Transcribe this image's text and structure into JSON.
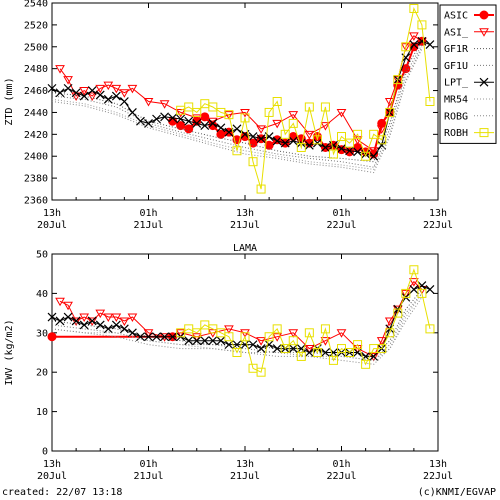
{
  "footer": {
    "created": "created: 22/07 13:18",
    "credit": "(c)KNMI/EGVAP"
  },
  "colors": {
    "ASIC": "#ff0000",
    "ASI_": "#ff0000",
    "GF1R": "#555555",
    "GF1U": "#777777",
    "LPT_": "#000000",
    "MR54": "#999999",
    "ROBG": "#888888",
    "ROBH": "#e8e000"
  },
  "chart_data": [
    {
      "type": "line",
      "title": "",
      "xlabel": "",
      "ylabel": "ZTD (mm)",
      "ylim": [
        2360,
        2540
      ],
      "yticks": [
        2360,
        2380,
        2400,
        2420,
        2440,
        2460,
        2480,
        2500,
        2520,
        2540
      ],
      "xlim": [
        0,
        48
      ],
      "x_unit": "hours since 20Jul 13h",
      "xticks": [
        {
          "x": 0,
          "top": "13h",
          "bottom": "20Jul"
        },
        {
          "x": 12,
          "top": "01h",
          "bottom": "21Jul"
        },
        {
          "x": 24,
          "top": "13h",
          "bottom": "21Jul"
        },
        {
          "x": 36,
          "top": "01h",
          "bottom": "22Jul"
        },
        {
          "x": 48,
          "top": "13h",
          "bottom": "22Jul"
        }
      ],
      "legend_position": "right",
      "series": [
        {
          "name": "ASIC",
          "style": "filled-circle",
          "x": [
            15,
            16,
            17,
            18,
            19,
            20,
            21,
            22,
            23,
            24,
            25,
            26,
            27,
            28,
            29,
            30,
            31,
            32,
            33,
            34,
            35,
            36,
            37,
            38,
            39,
            40,
            41,
            42,
            43,
            44,
            45,
            46
          ],
          "y": [
            2432,
            2428,
            2425,
            2432,
            2436,
            2428,
            2420,
            2422,
            2415,
            2418,
            2412,
            2416,
            2410,
            2415,
            2412,
            2418,
            2416,
            2412,
            2418,
            2408,
            2410,
            2406,
            2404,
            2408,
            2404,
            2402,
            2430,
            2440,
            2465,
            2480,
            2500,
            2505
          ]
        },
        {
          "name": "ASI_",
          "style": "open-triangle",
          "x": [
            1,
            2,
            3,
            4,
            5,
            6,
            7,
            8,
            9,
            10,
            12,
            14,
            16,
            18,
            20,
            22,
            24,
            26,
            28,
            30,
            32,
            34,
            36,
            38,
            40,
            41,
            42,
            43,
            44,
            45,
            46
          ],
          "y": [
            2480,
            2470,
            2455,
            2460,
            2455,
            2462,
            2465,
            2462,
            2458,
            2462,
            2450,
            2448,
            2440,
            2435,
            2432,
            2438,
            2440,
            2425,
            2430,
            2438,
            2420,
            2428,
            2440,
            2415,
            2405,
            2425,
            2450,
            2470,
            2500,
            2510,
            2505
          ]
        },
        {
          "name": "GF1R",
          "style": "dotted",
          "x": [
            0,
            4,
            8,
            12,
            16,
            20,
            24,
            28,
            32,
            36,
            40,
            42,
            44,
            46
          ],
          "y": [
            2458,
            2455,
            2448,
            2432,
            2425,
            2418,
            2412,
            2405,
            2400,
            2398,
            2395,
            2430,
            2480,
            2505
          ]
        },
        {
          "name": "GF1U",
          "style": "dotted",
          "x": [
            0,
            4,
            8,
            12,
            16,
            20,
            24,
            28,
            32,
            36,
            40,
            42,
            44,
            46
          ],
          "y": [
            2455,
            2452,
            2445,
            2430,
            2422,
            2415,
            2408,
            2402,
            2398,
            2395,
            2390,
            2425,
            2475,
            2502
          ]
        },
        {
          "name": "LPT_",
          "style": "cross",
          "x": [
            0,
            1,
            2,
            3,
            4,
            5,
            6,
            7,
            8,
            9,
            10,
            11,
            12,
            13,
            14,
            15,
            16,
            17,
            18,
            19,
            20,
            21,
            22,
            23,
            24,
            25,
            26,
            27,
            28,
            29,
            30,
            31,
            32,
            33,
            34,
            35,
            36,
            37,
            38,
            39,
            40,
            41,
            42,
            43,
            44,
            45,
            46,
            47
          ],
          "y": [
            2462,
            2458,
            2462,
            2458,
            2455,
            2460,
            2456,
            2452,
            2455,
            2450,
            2440,
            2432,
            2430,
            2434,
            2436,
            2435,
            2434,
            2432,
            2430,
            2428,
            2430,
            2426,
            2422,
            2425,
            2420,
            2418,
            2416,
            2418,
            2414,
            2412,
            2414,
            2412,
            2410,
            2412,
            2408,
            2410,
            2407,
            2405,
            2404,
            2402,
            2400,
            2410,
            2440,
            2470,
            2490,
            2502,
            2505,
            2502
          ]
        },
        {
          "name": "MR54",
          "style": "dotted",
          "x": [
            0,
            4,
            8,
            12,
            16,
            20,
            24,
            28,
            32,
            36,
            40,
            42,
            44,
            46
          ],
          "y": [
            2452,
            2448,
            2440,
            2428,
            2420,
            2412,
            2405,
            2400,
            2395,
            2392,
            2388,
            2420,
            2470,
            2500
          ]
        },
        {
          "name": "ROBG",
          "style": "dotted",
          "x": [
            0,
            4,
            8,
            12,
            16,
            20,
            24,
            28,
            32,
            36,
            40,
            42,
            44,
            46
          ],
          "y": [
            2450,
            2446,
            2438,
            2426,
            2418,
            2410,
            2402,
            2398,
            2393,
            2390,
            2385,
            2418,
            2468,
            2498
          ]
        },
        {
          "name": "ROBH",
          "style": "open-square",
          "x": [
            16,
            17,
            18,
            19,
            20,
            21,
            22,
            23,
            24,
            25,
            26,
            27,
            28,
            29,
            30,
            31,
            32,
            33,
            34,
            35,
            36,
            37,
            38,
            39,
            40,
            41,
            42,
            43,
            44,
            45,
            46,
            47
          ],
          "y": [
            2442,
            2445,
            2440,
            2448,
            2445,
            2440,
            2438,
            2405,
            2435,
            2395,
            2370,
            2440,
            2450,
            2420,
            2430,
            2408,
            2445,
            2415,
            2445,
            2402,
            2418,
            2412,
            2420,
            2400,
            2420,
            2415,
            2440,
            2470,
            2500,
            2535,
            2520,
            2450
          ]
        }
      ]
    },
    {
      "type": "line",
      "title": "LAMA",
      "xlabel": "",
      "ylabel": "IWV (kg/m2)",
      "ylim": [
        0,
        50
      ],
      "yticks": [
        0,
        10,
        20,
        30,
        40,
        50
      ],
      "xlim": [
        0,
        48
      ],
      "x_unit": "hours since 20Jul 13h",
      "xticks": [
        {
          "x": 0,
          "top": "13h",
          "bottom": "20Jul"
        },
        {
          "x": 12,
          "top": "01h",
          "bottom": "21Jul"
        },
        {
          "x": 24,
          "top": "13h",
          "bottom": "21Jul"
        },
        {
          "x": 36,
          "top": "01h",
          "bottom": "22Jul"
        },
        {
          "x": 48,
          "top": "13h",
          "bottom": "22Jul"
        }
      ],
      "series": [
        {
          "name": "ASIC",
          "style": "filled-circle",
          "x": [
            0,
            15
          ],
          "y": [
            29,
            29
          ]
        },
        {
          "name": "ASI_",
          "style": "open-triangle",
          "x": [
            1,
            2,
            3,
            4,
            5,
            6,
            7,
            8,
            9,
            10,
            12,
            14,
            16,
            18,
            20,
            22,
            24,
            26,
            28,
            30,
            32,
            34,
            36,
            38,
            40,
            41,
            42,
            43,
            44,
            45,
            46
          ],
          "y": [
            38,
            37,
            33,
            34,
            33,
            35,
            34,
            34,
            33,
            34,
            30,
            29,
            30,
            29,
            30,
            31,
            30,
            28,
            29,
            30,
            26,
            28,
            30,
            26,
            24,
            28,
            33,
            36,
            40,
            43,
            41
          ]
        },
        {
          "name": "GF1R",
          "style": "dotted",
          "x": [
            0,
            4,
            8,
            12,
            16,
            20,
            24,
            28,
            32,
            36,
            40,
            42,
            44,
            46
          ],
          "y": [
            33,
            32,
            31,
            29,
            28,
            27,
            27,
            26,
            25,
            25,
            24,
            28,
            36,
            41
          ]
        },
        {
          "name": "GF1U",
          "style": "dotted",
          "x": [
            0,
            4,
            8,
            12,
            16,
            20,
            24,
            28,
            32,
            36,
            40,
            42,
            44,
            46
          ],
          "y": [
            32,
            31,
            30,
            28,
            27,
            27,
            26,
            25,
            25,
            24,
            23,
            27,
            35,
            40
          ]
        },
        {
          "name": "LPT_",
          "style": "cross",
          "x": [
            0,
            1,
            2,
            3,
            4,
            5,
            6,
            7,
            8,
            9,
            10,
            11,
            12,
            13,
            14,
            15,
            16,
            17,
            18,
            19,
            20,
            21,
            22,
            23,
            24,
            25,
            26,
            27,
            28,
            29,
            30,
            31,
            32,
            33,
            34,
            35,
            36,
            37,
            38,
            39,
            40,
            41,
            42,
            43,
            44,
            45,
            46,
            47
          ],
          "y": [
            34,
            33,
            34,
            33,
            32,
            33,
            32,
            31,
            32,
            31,
            30,
            29,
            29,
            29,
            29,
            29,
            29,
            28,
            28,
            28,
            28,
            28,
            27,
            27,
            27,
            27,
            26,
            27,
            26,
            26,
            26,
            26,
            25,
            26,
            25,
            25,
            25,
            25,
            25,
            24,
            24,
            26,
            31,
            36,
            39,
            41,
            42,
            41
          ]
        },
        {
          "name": "MR54",
          "style": "dotted",
          "x": [
            0,
            4,
            8,
            12,
            16,
            20,
            24,
            28,
            32,
            36,
            40,
            42,
            44,
            46
          ],
          "y": [
            31,
            30,
            30,
            28,
            27,
            26,
            25,
            25,
            24,
            24,
            23,
            26,
            34,
            40
          ]
        },
        {
          "name": "ROBG",
          "style": "dotted",
          "x": [
            0,
            4,
            8,
            12,
            16,
            20,
            24,
            28,
            32,
            36,
            40,
            42,
            44,
            46
          ],
          "y": [
            31,
            30,
            29,
            27,
            26,
            26,
            25,
            24,
            24,
            23,
            22,
            26,
            33,
            39
          ]
        },
        {
          "name": "ROBH",
          "style": "open-square",
          "x": [
            16,
            17,
            18,
            19,
            20,
            21,
            22,
            23,
            24,
            25,
            26,
            27,
            28,
            29,
            30,
            31,
            32,
            33,
            34,
            35,
            36,
            37,
            38,
            39,
            40,
            41,
            42,
            43,
            44,
            45,
            46,
            47
          ],
          "y": [
            30,
            31,
            30,
            32,
            31,
            30,
            29,
            25,
            29,
            21,
            20,
            29,
            31,
            26,
            28,
            24,
            30,
            25,
            31,
            23,
            26,
            25,
            27,
            22,
            26,
            26,
            30,
            35,
            40,
            46,
            40,
            31
          ]
        }
      ]
    }
  ]
}
